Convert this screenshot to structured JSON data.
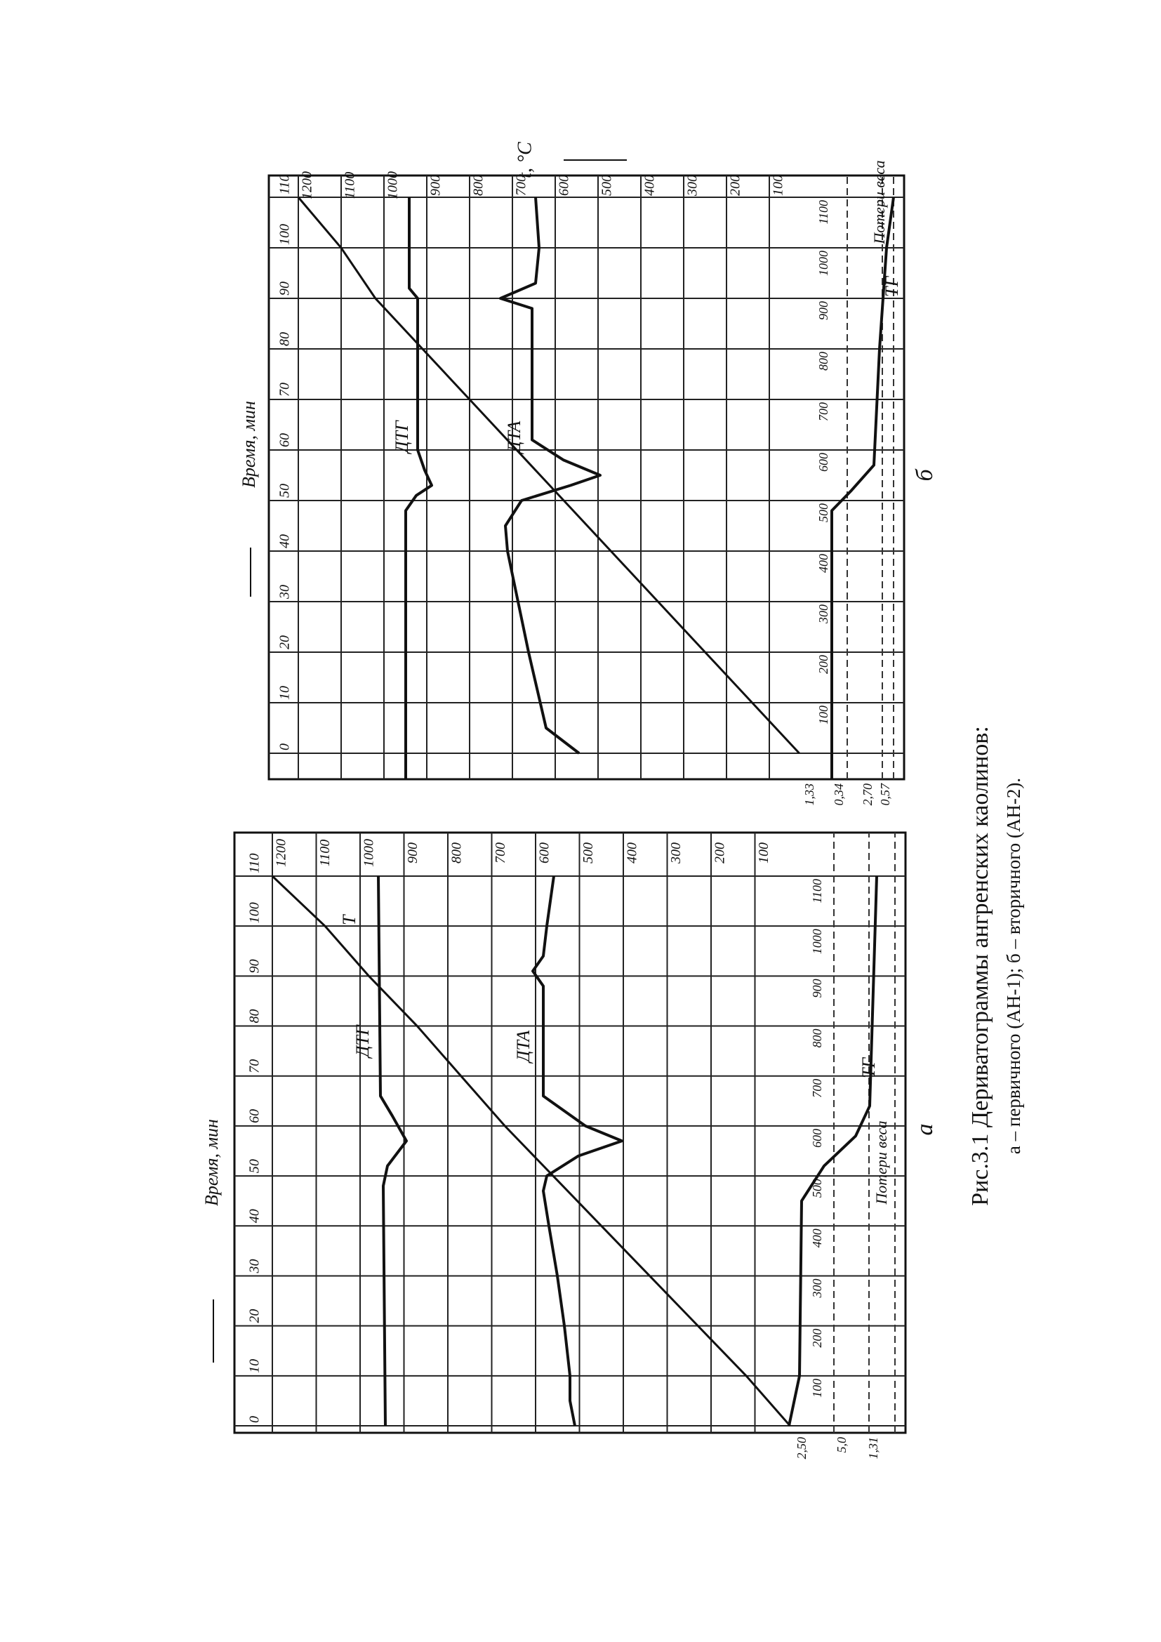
{
  "chart_data": [
    {
      "type": "line",
      "x_label": "Время, мин",
      "weight_label": "Потери веса",
      "x": [
        0,
        10,
        20,
        30,
        40,
        50,
        60,
        70,
        80,
        90,
        100,
        110
      ],
      "values": [
        20,
        120,
        230,
        340,
        450,
        560,
        670,
        770,
        870,
        980,
        1080,
        1200
      ],
      "color": "#111111",
      "xlim": [
        0,
        110
      ],
      "ylim": [
        0,
        1200
      ],
      "xticks": [
        0,
        10,
        20,
        30,
        40,
        50,
        60,
        70,
        80,
        90,
        100,
        110
      ],
      "yticks": [
        100,
        200,
        300,
        400,
        500,
        600,
        700,
        800,
        900,
        1000,
        1100,
        1200
      ],
      "grid": true,
      "curve_labels": [
        "T",
        "ДТГ",
        "ДТА",
        "ТГ"
      ],
      "tg_labels": [
        100,
        200,
        300,
        400,
        500,
        600,
        700,
        800,
        900,
        1000,
        1100
      ],
      "weight_labels": [
        "2,50",
        "5,0",
        "1,31"
      ],
      "panel": "а"
    },
    {
      "type": "line",
      "x_label": "Время, мин",
      "y_label": "t, °C",
      "weight_label": "Потери веса",
      "x": [
        0,
        10,
        20,
        30,
        40,
        50,
        60,
        70,
        80,
        90,
        100,
        110
      ],
      "values": [
        30,
        140,
        250,
        360,
        470,
        580,
        690,
        800,
        910,
        1020,
        1100,
        1200
      ],
      "color": "#111111",
      "xlim": [
        0,
        110
      ],
      "ylim": [
        0,
        1200
      ],
      "xticks": [
        0,
        10,
        20,
        30,
        40,
        50,
        60,
        70,
        80,
        90,
        100,
        110
      ],
      "yticks": [
        100,
        200,
        300,
        400,
        500,
        600,
        700,
        800,
        900,
        1000,
        1100,
        1200
      ],
      "grid": true,
      "curve_labels": [
        "ДТГ",
        "ДТА",
        "ТГ"
      ],
      "tg_labels": [
        100,
        200,
        300,
        400,
        500,
        600,
        700,
        800,
        900,
        1000,
        1100
      ],
      "weight_labels": [
        "1,33",
        "0,34",
        "2,70",
        "0,57"
      ],
      "panel": "б"
    }
  ],
  "caption": {
    "title": "Рис.3.1 Дериватограммы ангренских каолинов:",
    "subtitle": "а – первичного (АН-1); б – вторичного (АН-2)."
  }
}
